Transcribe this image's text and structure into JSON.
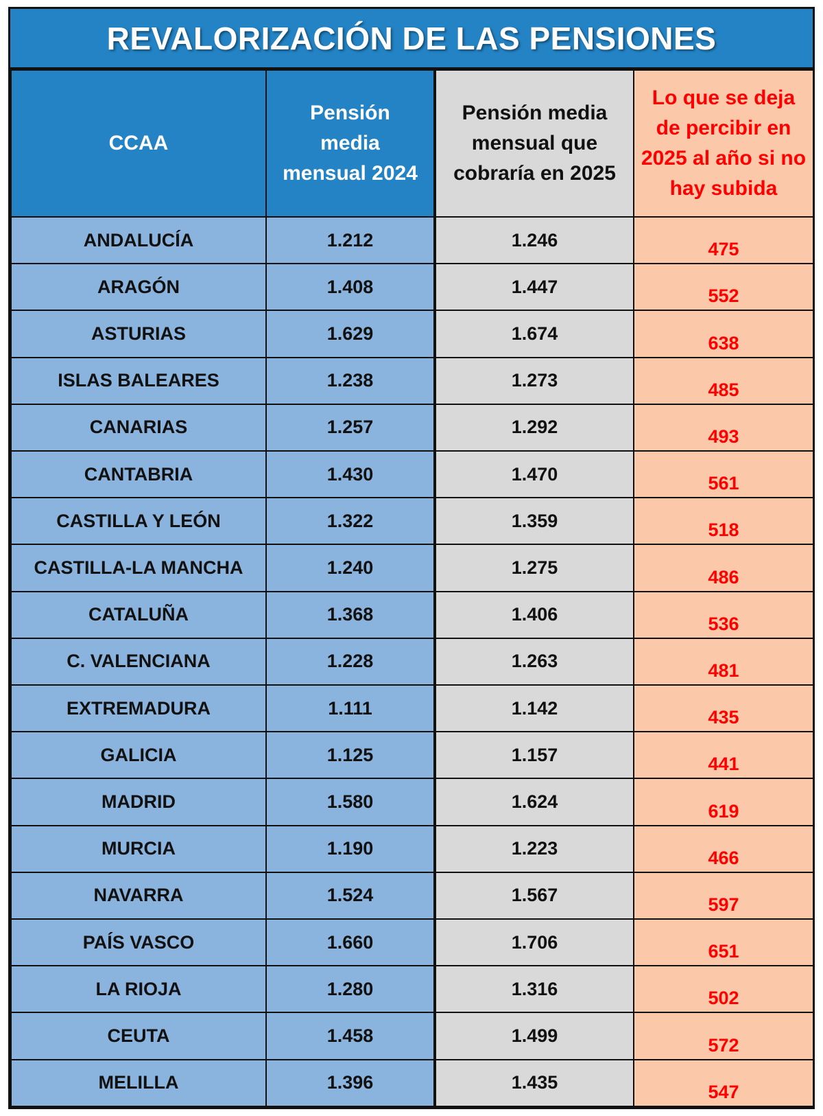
{
  "title": "REVALORIZACIÓN DE LAS PENSIONES",
  "headers": {
    "ccaa": "CCAA",
    "pension_2024": "Pensión media mensual 2024",
    "pension_2025": "Pensión media mensual que cobraría en 2025",
    "loss": "Lo que se deja de percibir en 2025 al año si no hay subida"
  },
  "colors": {
    "header_blue": "#2383c4",
    "cell_blue": "#8ab4dd",
    "cell_gray": "#d9d9d9",
    "cell_peach": "#fbc8a9",
    "loss_text": "#ff0000"
  },
  "chart_data": {
    "type": "table",
    "title": "REVALORIZACIÓN DE LAS PENSIONES",
    "columns": [
      "CCAA",
      "Pensión media mensual 2024",
      "Pensión media mensual que cobraría en 2025",
      "Lo que se deja de percibir en 2025 al año si no hay subida"
    ],
    "rows": [
      {
        "ccaa": "ANDALUCÍA",
        "p2024": "1.212",
        "p2025": "1.246",
        "loss": "475"
      },
      {
        "ccaa": "ARAGÓN",
        "p2024": "1.408",
        "p2025": "1.447",
        "loss": "552"
      },
      {
        "ccaa": "ASTURIAS",
        "p2024": "1.629",
        "p2025": "1.674",
        "loss": "638"
      },
      {
        "ccaa": "ISLAS BALEARES",
        "p2024": "1.238",
        "p2025": "1.273",
        "loss": "485"
      },
      {
        "ccaa": "CANARIAS",
        "p2024": "1.257",
        "p2025": "1.292",
        "loss": "493"
      },
      {
        "ccaa": "CANTABRIA",
        "p2024": "1.430",
        "p2025": "1.470",
        "loss": "561"
      },
      {
        "ccaa": "CASTILLA Y LEÓN",
        "p2024": "1.322",
        "p2025": "1.359",
        "loss": "518"
      },
      {
        "ccaa": "CASTILLA-LA MANCHA",
        "p2024": "1.240",
        "p2025": "1.275",
        "loss": "486"
      },
      {
        "ccaa": "CATALUÑA",
        "p2024": "1.368",
        "p2025": "1.406",
        "loss": "536"
      },
      {
        "ccaa": "C. VALENCIANA",
        "p2024": "1.228",
        "p2025": "1.263",
        "loss": "481"
      },
      {
        "ccaa": "EXTREMADURA",
        "p2024": "1.111",
        "p2025": "1.142",
        "loss": "435"
      },
      {
        "ccaa": "GALICIA",
        "p2024": "1.125",
        "p2025": "1.157",
        "loss": "441"
      },
      {
        "ccaa": "MADRID",
        "p2024": "1.580",
        "p2025": "1.624",
        "loss": "619"
      },
      {
        "ccaa": "MURCIA",
        "p2024": "1.190",
        "p2025": "1.223",
        "loss": "466"
      },
      {
        "ccaa": "NAVARRA",
        "p2024": "1.524",
        "p2025": "1.567",
        "loss": "597"
      },
      {
        "ccaa": "PAÍS VASCO",
        "p2024": "1.660",
        "p2025": "1.706",
        "loss": "651"
      },
      {
        "ccaa": "LA RIOJA",
        "p2024": "1.280",
        "p2025": "1.316",
        "loss": "502"
      },
      {
        "ccaa": "CEUTA",
        "p2024": "1.458",
        "p2025": "1.499",
        "loss": "572"
      },
      {
        "ccaa": "MELILLA",
        "p2024": "1.396",
        "p2025": "1.435",
        "loss": "547"
      }
    ]
  }
}
